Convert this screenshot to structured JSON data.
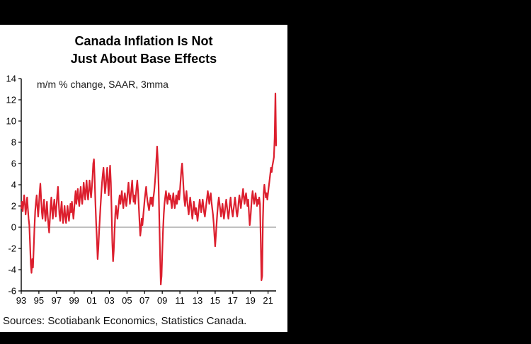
{
  "window": {
    "page_background": "#000000"
  },
  "chart_data": {
    "type": "line",
    "title": "Canada Inflation Is Not Just About Base Effects",
    "title_display": "Canada Inflation Is Not\nJust About Base Effects",
    "subtitle": "m/m % change, SAAR, 3mma",
    "source": "Sources: Scotiabank Economics, Statistics Canada.",
    "x_start": "1993-01",
    "x_end": "2021-12",
    "frequency": "monthly",
    "ylim": [
      -6,
      14
    ],
    "yticks": [
      14,
      12,
      10,
      8,
      6,
      4,
      2,
      0,
      -2,
      -4,
      -6
    ],
    "xticks": [
      {
        "label": "93",
        "i": 0
      },
      {
        "label": "95",
        "i": 24
      },
      {
        "label": "97",
        "i": 48
      },
      {
        "label": "99",
        "i": 72
      },
      {
        "label": "01",
        "i": 96
      },
      {
        "label": "03",
        "i": 120
      },
      {
        "label": "05",
        "i": 144
      },
      {
        "label": "07",
        "i": 168
      },
      {
        "label": "09",
        "i": 192
      },
      {
        "label": "11",
        "i": 216
      },
      {
        "label": "13",
        "i": 240
      },
      {
        "label": "15",
        "i": 264
      },
      {
        "label": "17",
        "i": 288
      },
      {
        "label": "19",
        "i": 312
      },
      {
        "label": "21",
        "i": 336
      }
    ],
    "legend": "none",
    "grid": "zero-line-only",
    "colors": {
      "line": "#dc1f2e",
      "axis": "#000000",
      "zero_line": "#808080",
      "panel_bg": "#ffffff",
      "page_bg": "#000000"
    },
    "series": [
      {
        "name": "Canada CPI, m/m % change, SAAR, 3mma",
        "color": "#dc1f2e",
        "values": [
          1.8,
          2.4,
          1.5,
          2.2,
          3.0,
          2.2,
          1.2,
          2.0,
          2.8,
          1.8,
          0.8,
          0.2,
          -1.5,
          -3.5,
          -4.3,
          -3.0,
          -3.8,
          -2.0,
          0.0,
          1.5,
          2.3,
          3.0,
          2.0,
          1.0,
          2.0,
          3.2,
          4.1,
          2.8,
          1.5,
          0.8,
          1.8,
          2.6,
          1.4,
          0.6,
          1.6,
          2.4,
          1.2,
          0.2,
          -0.5,
          0.8,
          2.0,
          2.8,
          1.6,
          0.8,
          1.8,
          2.6,
          1.8,
          1.0,
          2.0,
          3.0,
          3.8,
          2.4,
          1.2,
          0.6,
          1.6,
          2.4,
          1.2,
          0.4,
          1.2,
          2.0,
          1.0,
          0.4,
          1.2,
          2.0,
          1.2,
          0.6,
          1.4,
          2.2,
          1.4,
          2.4,
          1.6,
          0.8,
          1.6,
          2.6,
          3.4,
          2.2,
          2.8,
          3.6,
          2.6,
          2.0,
          3.0,
          3.8,
          2.8,
          2.2,
          3.0,
          4.2,
          3.4,
          2.6,
          3.6,
          4.4,
          3.2,
          2.6,
          3.4,
          4.4,
          3.6,
          2.8,
          3.6,
          4.6,
          6.0,
          6.4,
          4.6,
          2.2,
          0.4,
          -1.2,
          -3.0,
          -2.0,
          -0.4,
          0.8,
          2.0,
          3.2,
          4.2,
          5.0,
          5.6,
          4.4,
          3.2,
          3.8,
          4.8,
          5.6,
          4.2,
          3.0,
          4.6,
          5.8,
          4.2,
          1.6,
          -1.4,
          -3.2,
          -2.2,
          -0.4,
          1.2,
          2.0,
          1.4,
          0.8,
          1.6,
          2.4,
          3.0,
          2.2,
          2.8,
          3.4,
          2.4,
          1.8,
          2.6,
          3.2,
          2.6,
          2.0,
          2.6,
          3.4,
          4.2,
          3.2,
          2.2,
          2.8,
          3.6,
          4.4,
          3.2,
          2.4,
          3.0,
          2.2,
          3.0,
          3.8,
          4.4,
          3.4,
          2.0,
          0.6,
          -0.8,
          -0.2,
          0.8,
          0.2,
          1.0,
          1.8,
          2.6,
          3.2,
          3.8,
          3.0,
          2.4,
          2.0,
          1.6,
          2.2,
          2.8,
          2.2,
          2.8,
          2.0,
          2.8,
          3.4,
          4.2,
          5.2,
          6.4,
          7.6,
          6.2,
          4.0,
          0.8,
          -2.6,
          -5.4,
          -4.6,
          -2.4,
          -0.4,
          1.2,
          2.2,
          2.8,
          3.4,
          2.8,
          2.2,
          2.8,
          3.2,
          2.6,
          3.0,
          2.4,
          1.8,
          2.6,
          3.2,
          2.4,
          1.8,
          2.4,
          3.0,
          2.2,
          2.8,
          3.4,
          2.6,
          3.4,
          4.4,
          5.4,
          6.0,
          5.0,
          3.6,
          2.6,
          2.0,
          2.8,
          3.4,
          2.4,
          1.8,
          1.2,
          2.0,
          2.8,
          2.2,
          1.4,
          0.8,
          1.6,
          2.4,
          1.8,
          1.2,
          1.8,
          1.2,
          0.6,
          1.2,
          2.0,
          2.6,
          2.0,
          1.4,
          2.0,
          2.6,
          2.0,
          1.4,
          1.0,
          1.6,
          2.2,
          2.8,
          3.4,
          2.8,
          2.2,
          2.8,
          3.2,
          2.4,
          1.8,
          1.2,
          0.4,
          -0.8,
          -1.8,
          -0.8,
          0.4,
          1.4,
          2.2,
          2.8,
          2.2,
          1.6,
          1.0,
          1.6,
          2.2,
          1.4,
          0.8,
          1.4,
          2.0,
          2.6,
          2.0,
          1.4,
          0.8,
          1.4,
          2.2,
          2.8,
          2.0,
          1.4,
          1.0,
          1.6,
          2.2,
          2.8,
          2.2,
          1.4,
          1.0,
          1.6,
          2.4,
          3.0,
          2.4,
          1.8,
          2.4,
          3.0,
          3.6,
          2.8,
          2.2,
          2.8,
          3.2,
          2.6,
          2.0,
          2.6,
          1.4,
          0.2,
          0.8,
          1.8,
          2.8,
          3.4,
          2.8,
          2.2,
          2.6,
          3.2,
          2.6,
          2.0,
          2.6,
          2.2,
          2.8,
          2.2,
          -1.0,
          -5.0,
          -4.6,
          0.6,
          3.2,
          4.0,
          3.4,
          2.8,
          3.2,
          2.6,
          3.2,
          3.8,
          4.4,
          5.0,
          5.6,
          5.2,
          5.8,
          6.2,
          6.6,
          8.4,
          12.6,
          7.7
        ]
      }
    ]
  }
}
